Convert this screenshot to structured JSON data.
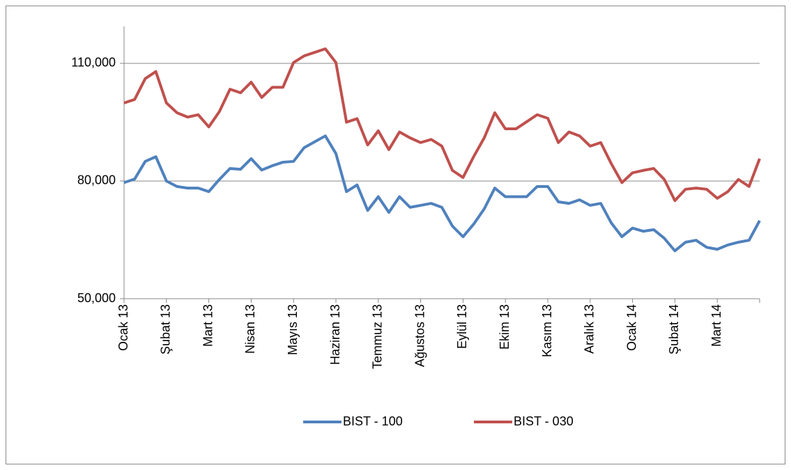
{
  "chart_data": {
    "type": "line",
    "categories": [
      "Ocak 13",
      null,
      null,
      null,
      "Şubat 13",
      null,
      null,
      null,
      "Mart 13",
      null,
      null,
      null,
      "Nisan 13",
      null,
      null,
      null,
      "Mayıs 13",
      null,
      null,
      null,
      "Haziran 13",
      null,
      null,
      null,
      "Temmuz 13",
      null,
      null,
      null,
      "Ağustos 13",
      null,
      null,
      null,
      "Eylül 13",
      null,
      null,
      null,
      "Ekim 13",
      null,
      null,
      null,
      "Kasım 13",
      null,
      null,
      null,
      "Aralık 13",
      null,
      null,
      null,
      "Ocak 14",
      null,
      null,
      null,
      "Şubat 14",
      null,
      null,
      null,
      "Mart 14",
      null,
      null,
      null,
      null
    ],
    "series": [
      {
        "name": "BIST - 100",
        "color": "#4f81bd",
        "values": [
          79600,
          80500,
          85000,
          86200,
          80000,
          78600,
          78200,
          78200,
          77300,
          80400,
          83200,
          83000,
          85700,
          82800,
          83900,
          84800,
          85000,
          88500,
          90000,
          91500,
          87000,
          77300,
          79000,
          72500,
          76000,
          72000,
          76000,
          73300,
          73800,
          74300,
          73300,
          68500,
          65800,
          69000,
          72900,
          78200,
          76000,
          76000,
          76000,
          78600,
          78600,
          74700,
          74300,
          75200,
          73800,
          74300,
          69300,
          65800,
          68000,
          67200,
          67600,
          65400,
          62200,
          64400,
          64900,
          63100,
          62600,
          63700,
          64400,
          64900,
          69900
        ]
      },
      {
        "name": "BIST - 030",
        "color": "#c0504d",
        "values": [
          99900,
          100800,
          106100,
          107900,
          99900,
          97400,
          96300,
          96900,
          93800,
          97700,
          103400,
          102500,
          105200,
          101300,
          103900,
          103900,
          110200,
          111900,
          112800,
          113700,
          110200,
          95000,
          95900,
          89200,
          92800,
          88000,
          92500,
          91000,
          89800,
          90600,
          88900,
          82700,
          80900,
          86200,
          91000,
          97400,
          93300,
          93300,
          95100,
          96900,
          96000,
          89800,
          92500,
          91500,
          88900,
          89800,
          84400,
          79600,
          82100,
          82700,
          83200,
          80400,
          75000,
          77900,
          78200,
          77900,
          75600,
          77300,
          80400,
          78600,
          85700
        ]
      }
    ],
    "ylim": [
      50000,
      119400
    ],
    "yticks": [
      {
        "value": 50000,
        "label": "50,000"
      },
      {
        "value": 80000,
        "label": "80,000"
      },
      {
        "value": 110000,
        "label": "110,000"
      }
    ],
    "grid": true,
    "legend": "bottom"
  }
}
